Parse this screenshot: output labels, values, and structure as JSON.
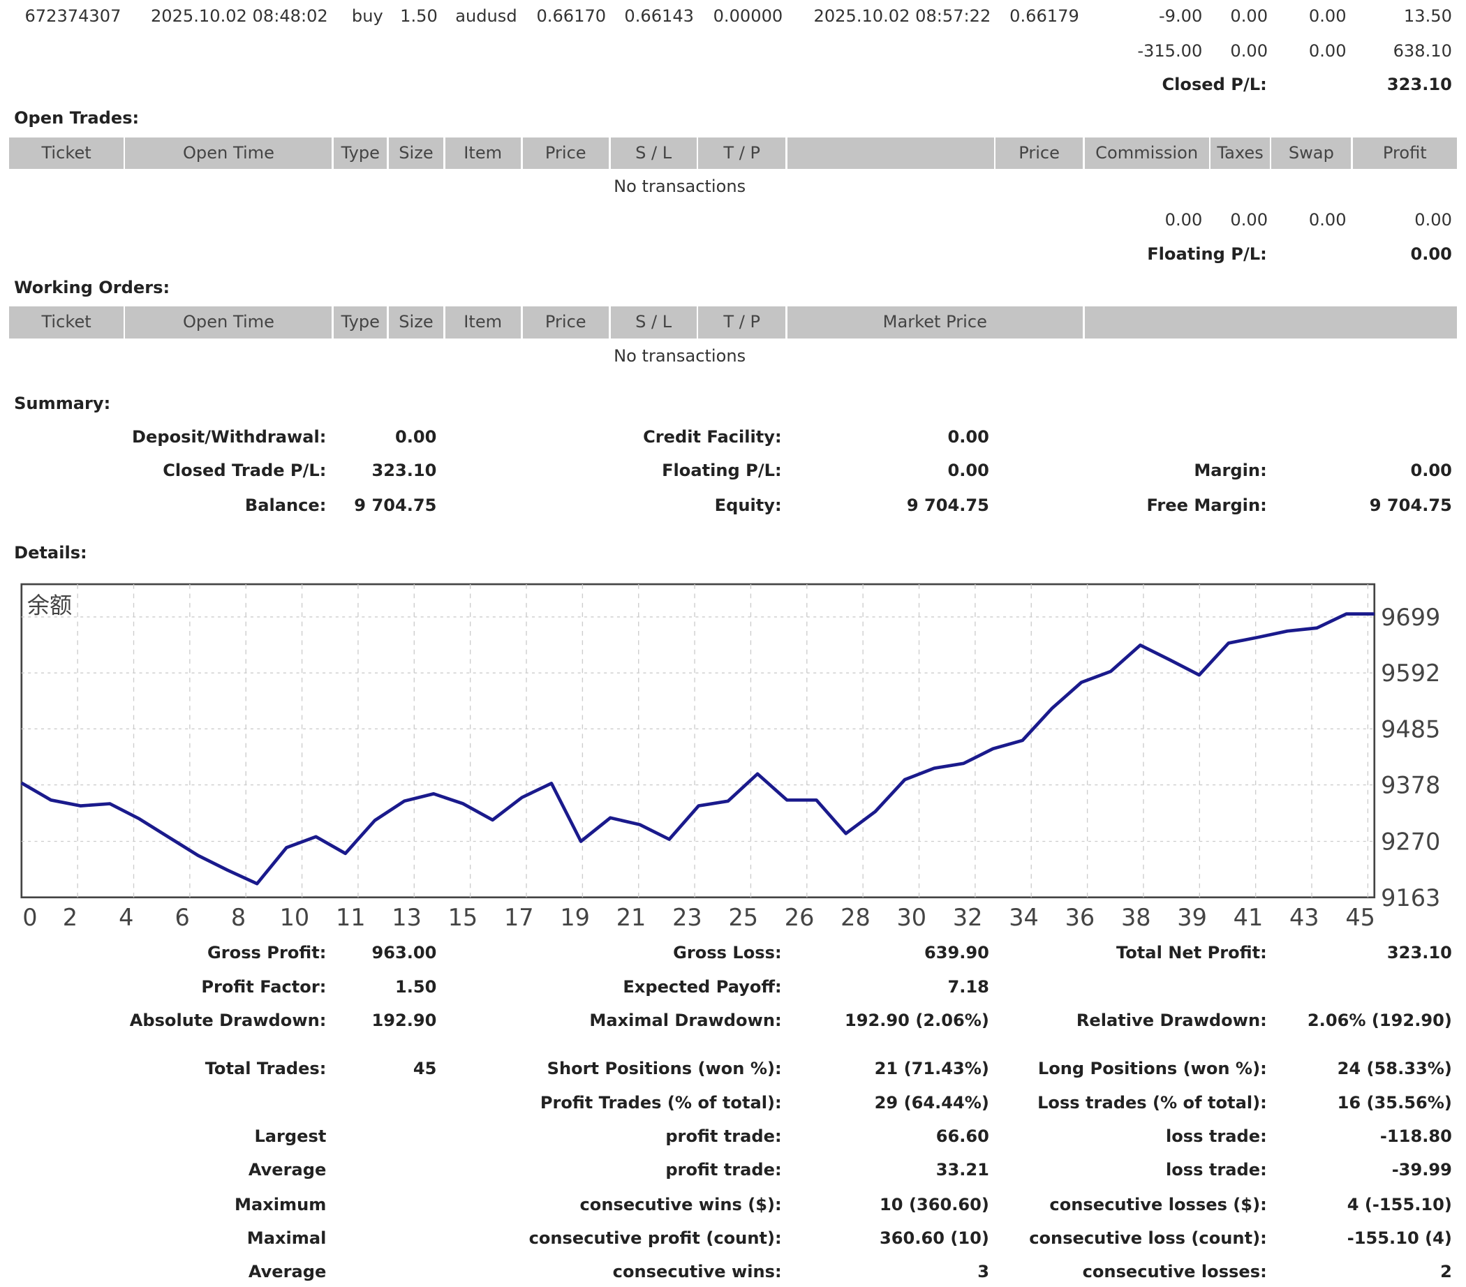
{
  "closed_trades": {
    "last_row": {
      "ticket": "672374307",
      "open_time": "2025.10.02 08:48:02",
      "type": "buy",
      "size": "1.50",
      "item": "audusd",
      "price": "0.66170",
      "sl": "0.66143",
      "tp": "0.00000",
      "close_time": "2025.10.02 08:57:22",
      "close_price": "0.66179",
      "commission": "-9.00",
      "taxes": "0.00",
      "swap": "0.00",
      "profit": "13.50"
    },
    "totals": {
      "commission": "-315.00",
      "taxes": "0.00",
      "swap": "0.00",
      "profit": "638.10"
    },
    "closed_pl_label": "Closed P/L:",
    "closed_pl": "323.10"
  },
  "open_trades": {
    "title": "Open Trades:",
    "headers": [
      "Ticket",
      "Open Time",
      "Type",
      "Size",
      "Item",
      "Price",
      "S / L",
      "T / P",
      "",
      "Price",
      "Commission",
      "Taxes",
      "Swap",
      "Profit"
    ],
    "empty": "No transactions",
    "totals": {
      "commission": "0.00",
      "taxes": "0.00",
      "swap": "0.00",
      "profit": "0.00"
    },
    "floating_pl_label": "Floating P/L:",
    "floating_pl": "0.00"
  },
  "working_orders": {
    "title": "Working Orders:",
    "headers": [
      "Ticket",
      "Open Time",
      "Type",
      "Size",
      "Item",
      "Price",
      "S / L",
      "T / P",
      "Market Price",
      ""
    ],
    "empty": "No transactions"
  },
  "summary": {
    "title": "Summary:",
    "deposit_label": "Deposit/Withdrawal:",
    "deposit": "0.00",
    "credit_label": "Credit Facility:",
    "credit": "0.00",
    "closed_trade_label": "Closed Trade P/L:",
    "closed_trade": "323.10",
    "floating_label": "Floating P/L:",
    "floating": "0.00",
    "margin_label": "Margin:",
    "margin": "0.00",
    "balance_label": "Balance:",
    "balance": "9 704.75",
    "equity_label": "Equity:",
    "equity": "9 704.75",
    "free_margin_label": "Free Margin:",
    "free_margin": "9 704.75"
  },
  "details": {
    "title": "Details:",
    "rows": [
      [
        "Gross Profit:",
        "963.00",
        "Gross Loss:",
        "639.90",
        "Total Net Profit:",
        "323.10"
      ],
      [
        "Profit Factor:",
        "1.50",
        "Expected Payoff:",
        "7.18",
        "",
        ""
      ],
      [
        "Absolute Drawdown:",
        "192.90",
        "Maximal Drawdown:",
        "192.90 (2.06%)",
        "Relative Drawdown:",
        "2.06% (192.90)"
      ],
      [
        "Total Trades:",
        "45",
        "Short Positions (won %):",
        "21 (71.43%)",
        "Long Positions (won %):",
        "24 (58.33%)"
      ],
      [
        "",
        "",
        "Profit Trades (% of total):",
        "29 (64.44%)",
        "Loss trades (% of total):",
        "16 (35.56%)"
      ],
      [
        "Largest",
        "",
        "profit trade:",
        "66.60",
        "loss trade:",
        "-118.80"
      ],
      [
        "Average",
        "",
        "profit trade:",
        "33.21",
        "loss trade:",
        "-39.99"
      ],
      [
        "Maximum",
        "",
        "consecutive wins ($):",
        "10 (360.60)",
        "consecutive losses ($):",
        "4 (-155.10)"
      ],
      [
        "Maximal",
        "",
        "consecutive profit (count):",
        "360.60 (10)",
        "consecutive loss (count):",
        "-155.10 (4)"
      ],
      [
        "Average",
        "",
        "consecutive wins:",
        "3",
        "consecutive losses:",
        "2"
      ]
    ]
  },
  "chart_data": {
    "type": "line",
    "title": "余额",
    "line_color": "#1a1a8c",
    "grid": true,
    "ylim": [
      9163,
      9699
    ],
    "y_ticks": [
      "9699",
      "9592",
      "9485",
      "9378",
      "9270",
      "9163"
    ],
    "x_ticks": [
      "0",
      "2",
      "4",
      "6",
      "8",
      "10",
      "11",
      "13",
      "15",
      "17",
      "19",
      "21",
      "23",
      "25",
      "26",
      "28",
      "30",
      "32",
      "34",
      "36",
      "38",
      "39",
      "41",
      "43",
      "45"
    ],
    "x": [
      0,
      1,
      2,
      3,
      4,
      5,
      6,
      7,
      8,
      9,
      10,
      11,
      12,
      13,
      14,
      15,
      16,
      17,
      18,
      19,
      20,
      21,
      22,
      23,
      24,
      25,
      26,
      27,
      28,
      29,
      30,
      31,
      32,
      33,
      34,
      35,
      36,
      37,
      38,
      39,
      40,
      41,
      42,
      43,
      44,
      45
    ],
    "values": [
      9381.65,
      9349,
      9338,
      9342,
      9313,
      9278,
      9243,
      9215,
      9189,
      9258,
      9279,
      9247,
      9310,
      9347,
      9361,
      9342,
      9311,
      9354,
      9381,
      9270,
      9315,
      9302,
      9274,
      9338,
      9347,
      9399,
      9349,
      9349,
      9285,
      9327,
      9388,
      9410,
      9419,
      9447,
      9463,
      9524,
      9574,
      9595,
      9645,
      9617,
      9588,
      9649,
      9660,
      9672,
      9678,
      9704.75
    ]
  }
}
